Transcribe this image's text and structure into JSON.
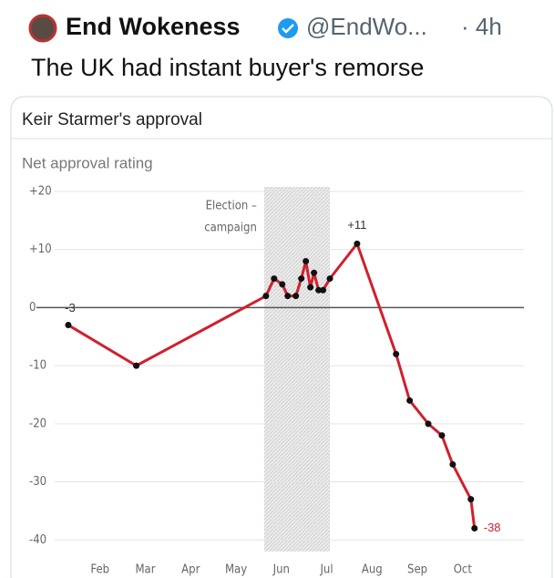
{
  "post": {
    "name": "End Wokeness",
    "handle": "@EndWo...",
    "time": "· 4h",
    "text": "The UK had instant buyer's remorse"
  },
  "chart_data": {
    "type": "line",
    "title": "Keir Starmer's approval",
    "subtitle": "Net approval rating",
    "x": [
      1.3,
      2.8,
      5.66,
      5.84,
      6.02,
      6.14,
      6.32,
      6.44,
      6.54,
      6.64,
      6.72,
      6.82,
      6.92,
      7.07,
      7.67,
      8.53,
      8.83,
      9.24,
      9.54,
      9.78,
      10.18,
      10.26
    ],
    "values": [
      -3,
      -10,
      2,
      5,
      4,
      2,
      2,
      5,
      8,
      3.5,
      6,
      3,
      3,
      5,
      11,
      -8,
      -16,
      -20,
      -22,
      -27,
      -33,
      -38
    ],
    "value_labels": [
      "-3",
      null,
      null,
      null,
      null,
      null,
      null,
      null,
      null,
      null,
      null,
      null,
      null,
      null,
      "+11",
      null,
      null,
      null,
      null,
      null,
      null,
      "-38"
    ],
    "color": "#d0202e",
    "xlim": [
      1,
      11.35
    ],
    "xticks": [
      {
        "value": 2,
        "label": "Feb"
      },
      {
        "value": 3,
        "label": "Mar"
      },
      {
        "value": 4,
        "label": "Apr"
      },
      {
        "value": 5,
        "label": "May"
      },
      {
        "value": 6,
        "label": "Jun"
      },
      {
        "value": 7,
        "label": "Jul"
      },
      {
        "value": 8,
        "label": "Aug"
      },
      {
        "value": 9,
        "label": "Sep"
      },
      {
        "value": 10,
        "label": "Oct"
      }
    ],
    "ylim": [
      -42,
      20
    ],
    "yticks": [
      {
        "value": 20,
        "label": "+20"
      },
      {
        "value": 10,
        "label": "+10"
      },
      0,
      -10,
      -20,
      -30,
      -40
    ],
    "grid": true,
    "shaded_region": {
      "x": [
        5.62,
        7.07
      ],
      "label": [
        "Election –",
        "campaign"
      ]
    }
  }
}
